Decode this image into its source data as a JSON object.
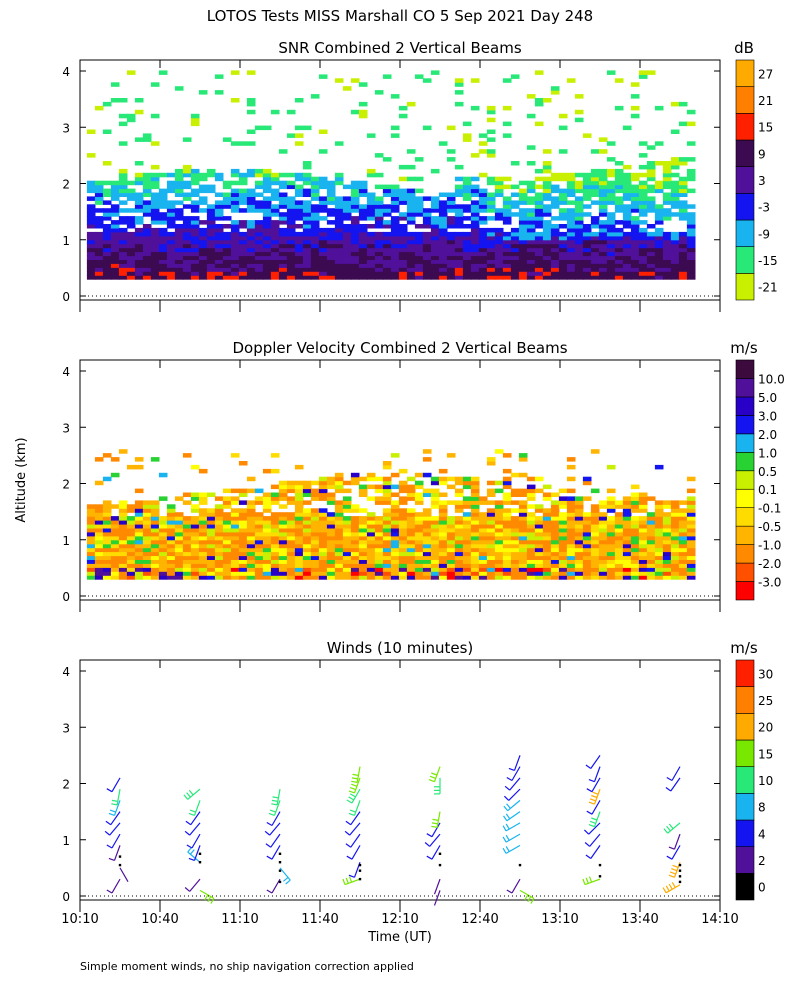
{
  "page_title": "LOTOS Tests MISS Marshall CO   5 Sep 2021 Day 248",
  "y_axis_label": "Altitude (km)",
  "footnote": "Simple moment winds, no ship navigation correction applied",
  "colors": {
    "snr_scale": [
      "#c8f000",
      "#28e878",
      "#19b4f0",
      "#1414f0",
      "#50109a",
      "#3c0a50",
      "#ff2000",
      "#ff7f00",
      "#ffaa00"
    ],
    "velocity_scale": [
      "#ff0000",
      "#ff5000",
      "#ff8a00",
      "#ffb400",
      "#ffdc00",
      "#ffff00",
      "#c8f000",
      "#28d232",
      "#19b4f0",
      "#1414f0",
      "#2800c8",
      "#50109a",
      "#3c0a3c"
    ],
    "wind_scale": [
      "#000000",
      "#50109a",
      "#1414f0",
      "#19b4f0",
      "#28e878",
      "#78e800",
      "#ffaa00",
      "#ff7f00",
      "#ff2000"
    ]
  },
  "chart_data": [
    {
      "type": "heatmap",
      "title": "SNR Combined 2 Vertical Beams",
      "xlabel": "",
      "ylabel": "Altitude (km)",
      "x_range_hours": [
        10.1667,
        14.1667
      ],
      "ylim": [
        0,
        4
      ],
      "y_ticks": [
        "0",
        "1",
        "2",
        "3",
        "4"
      ],
      "colorbar": {
        "unit": "dB",
        "labels": [
          "-21",
          "-15",
          "-9",
          "-3",
          "3",
          "9",
          "15",
          "21",
          "27"
        ],
        "boundaries": [
          -24,
          -18,
          -12,
          -6,
          0,
          6,
          12,
          18,
          24,
          30
        ]
      },
      "description_note": "Strongest SNR (3-21 dB) below ~1 km, decreasing with height; weaker echoes (-21 to -3 dB) up to ~2.5 km; sparse returns up to ~4 km."
    },
    {
      "type": "heatmap",
      "title": "Doppler Velocity Combined 2 Vertical Beams",
      "xlabel": "",
      "ylabel": "Altitude (km)",
      "x_range_hours": [
        10.1667,
        14.1667
      ],
      "ylim": [
        0,
        4
      ],
      "y_ticks": [
        "0",
        "1",
        "2",
        "3",
        "4"
      ],
      "colorbar": {
        "unit": "m/s",
        "labels": [
          "-3.0",
          "-2.0",
          "-1.0",
          "-0.5",
          "-0.1",
          "0.1",
          "0.5",
          "1.0",
          "2.0",
          "3.0",
          "5.0",
          "10.0"
        ]
      },
      "description_note": "Mostly weak downward motion (-1.0 to -0.1 m/s) between 0.3 and 2.2 km."
    },
    {
      "type": "scatter",
      "title": "Winds (10 minutes)",
      "xlabel": "Time (UT)",
      "ylabel": "Altitude (km)",
      "x_ticks": [
        "10:10",
        "10:40",
        "11:10",
        "11:40",
        "12:10",
        "12:40",
        "13:10",
        "13:40",
        "14:10"
      ],
      "y_ticks": [
        "0",
        "1",
        "2",
        "3",
        "4"
      ],
      "ylim": [
        0,
        4
      ],
      "colorbar": {
        "unit": "m/s",
        "labels": [
          "0",
          "2",
          "4",
          "8",
          "10",
          "15",
          "20",
          "25",
          "30"
        ],
        "boundaries": [
          0,
          2,
          4,
          8,
          10,
          15,
          20,
          25,
          30,
          34
        ]
      },
      "profiles": [
        {
          "time": "10:25",
          "x_hour": 10.4167,
          "barbs": [
            [
              0.3,
              3,
              210
            ],
            [
              0.5,
              2,
              150
            ],
            [
              0.9,
              3,
              200
            ],
            [
              1.1,
              4,
              210
            ],
            [
              1.3,
              5,
              220
            ],
            [
              1.5,
              6,
              215
            ],
            [
              1.7,
              9,
              200
            ],
            [
              1.9,
              10,
              190
            ],
            [
              2.1,
              5,
              210
            ]
          ],
          "low_points": [
            0.55,
            0.7
          ]
        },
        {
          "time": "10:55",
          "x_hour": 10.9167,
          "barbs": [
            [
              0.1,
              16,
              120
            ],
            [
              0.3,
              3,
              220
            ],
            [
              0.6,
              9,
              310
            ],
            [
              0.9,
              4,
              200
            ],
            [
              1.1,
              5,
              210
            ],
            [
              1.3,
              5,
              220
            ],
            [
              1.5,
              6,
              215
            ],
            [
              1.7,
              12,
              200
            ],
            [
              1.9,
              14,
              230
            ]
          ],
          "low_points": [
            0.6,
            0.75
          ]
        },
        {
          "time": "11:25",
          "x_hour": 11.4167,
          "barbs": [
            [
              0.3,
              3,
              210
            ],
            [
              0.5,
              9,
              140
            ],
            [
              0.9,
              4,
              210
            ],
            [
              1.1,
              4,
              215
            ],
            [
              1.3,
              5,
              220
            ],
            [
              1.5,
              6,
              210
            ],
            [
              1.7,
              12,
              200
            ],
            [
              1.9,
              14,
              190
            ]
          ],
          "low_points": [
            0.25,
            0.45,
            0.6,
            0.75
          ]
        },
        {
          "time": "11:55",
          "x_hour": 11.9167,
          "barbs": [
            [
              0.3,
              16,
              250
            ],
            [
              0.6,
              4,
              200
            ],
            [
              0.9,
              5,
              210
            ],
            [
              1.1,
              6,
              215
            ],
            [
              1.3,
              6,
              220
            ],
            [
              1.5,
              6,
              215
            ],
            [
              1.7,
              12,
              200
            ],
            [
              1.9,
              14,
              210
            ],
            [
              2.1,
              15,
              200
            ],
            [
              2.3,
              17,
              190
            ]
          ],
          "low_points": [
            0.3,
            0.45,
            0.55
          ]
        },
        {
          "time": "12:25",
          "x_hour": 12.4167,
          "barbs": [
            [
              0.1,
              2,
              200
            ],
            [
              0.3,
              2,
              200
            ],
            [
              0.9,
              5,
              210
            ],
            [
              1.1,
              5,
              220
            ],
            [
              1.3,
              6,
              210
            ],
            [
              1.5,
              16,
              190
            ],
            [
              2.1,
              14,
              180
            ],
            [
              2.3,
              15,
              200
            ]
          ],
          "low_points": [
            0.55,
            0.75
          ]
        },
        {
          "time": "12:55",
          "x_hour": 12.9167,
          "barbs": [
            [
              0.1,
              16,
              120
            ],
            [
              0.3,
              3,
              210
            ],
            [
              0.9,
              9,
              240
            ],
            [
              1.1,
              9,
              240
            ],
            [
              1.3,
              9,
              240
            ],
            [
              1.5,
              9,
              235
            ],
            [
              1.7,
              8,
              230
            ],
            [
              1.9,
              7,
              225
            ],
            [
              2.1,
              6,
              220
            ],
            [
              2.3,
              6,
              210
            ],
            [
              2.5,
              5,
              200
            ]
          ],
          "low_points": [
            0.55
          ]
        },
        {
          "time": "13:25",
          "x_hour": 13.4167,
          "barbs": [
            [
              0.3,
              16,
              250
            ],
            [
              0.9,
              4,
              215
            ],
            [
              1.1,
              5,
              220
            ],
            [
              1.3,
              5,
              225
            ],
            [
              1.5,
              13,
              200
            ],
            [
              1.7,
              4,
              210
            ],
            [
              1.9,
              20,
              200
            ],
            [
              2.1,
              5,
              210
            ],
            [
              2.3,
              4,
              200
            ],
            [
              2.5,
              6,
              215
            ]
          ],
          "low_points": [
            0.35,
            0.55
          ]
        },
        {
          "time": "13:55",
          "x_hour": 13.9167,
          "barbs": [
            [
              0.2,
              22,
              240
            ],
            [
              0.6,
              20,
              200
            ],
            [
              0.9,
              4,
              210
            ],
            [
              1.1,
              3,
              200
            ],
            [
              1.3,
              14,
              230
            ],
            [
              2.1,
              5,
              215
            ],
            [
              2.3,
              5,
              210
            ]
          ],
          "low_points": [
            0.25,
            0.35,
            0.45,
            0.55
          ]
        }
      ]
    }
  ]
}
